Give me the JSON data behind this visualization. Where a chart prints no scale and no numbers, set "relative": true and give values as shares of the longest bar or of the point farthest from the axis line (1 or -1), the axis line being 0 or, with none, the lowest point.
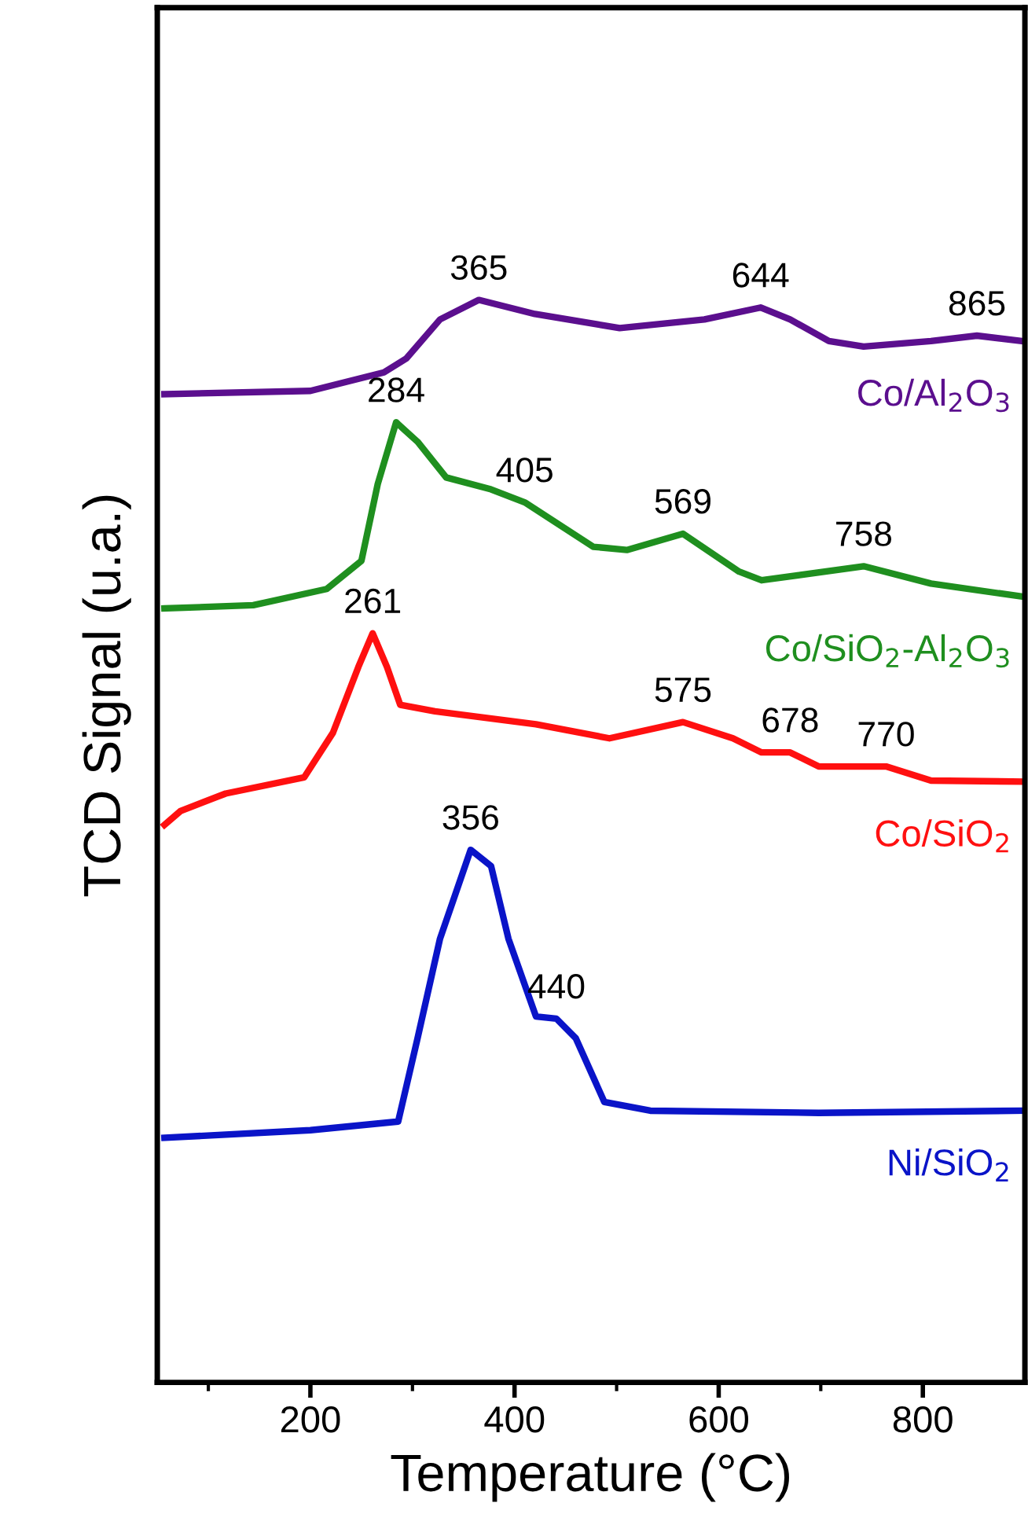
{
  "chart_data": {
    "type": "line",
    "xlabel": "Temperature (°C)",
    "ylabel": "TCD Signal (u.a.)",
    "relative": true,
    "tick_labels": "x",
    "legend": false,
    "grid": false,
    "marker": "none",
    "line_style": "solid",
    "xlim": [
      50,
      900
    ],
    "xticks": [
      {
        "value": 100,
        "label": null
      },
      200,
      {
        "value": 300,
        "label": null
      },
      400,
      {
        "value": 500,
        "label": null
      },
      600,
      {
        "value": 700,
        "label": null
      },
      800
    ],
    "series": [
      {
        "name": "Co/Al$_{2}$O$_{3}$",
        "color": "#5b0f8e",
        "x": [
          57,
          200,
          272,
          294,
          327,
          365,
          420,
          503,
          586,
          641,
          670,
          708,
          742,
          808,
          853,
          897
        ],
        "values": [
          0.913,
          0.916,
          0.933,
          0.946,
          0.982,
          1.0,
          0.987,
          0.974,
          0.982,
          0.993,
          0.982,
          0.962,
          0.957,
          0.962,
          0.967,
          0.962
        ]
      },
      {
        "name": "Co/SiO$_{2}$-Al$_{2}$O$_{3}$",
        "color": "#1f8f1f",
        "x": [
          57,
          144,
          216,
          250,
          266,
          284,
          305,
          333,
          377,
          410,
          477,
          510,
          565,
          620,
          642,
          742,
          808,
          897
        ],
        "values": [
          0.715,
          0.718,
          0.733,
          0.759,
          0.83,
          0.887,
          0.869,
          0.836,
          0.825,
          0.813,
          0.772,
          0.769,
          0.784,
          0.749,
          0.741,
          0.754,
          0.738,
          0.726
        ]
      },
      {
        "name": "Co/SiO$_{2}$",
        "color": "#ff1010",
        "x": [
          57,
          73,
          117,
          194,
          222,
          247,
          261,
          275,
          288,
          322,
          421,
          493,
          565,
          614,
          642,
          670,
          698,
          764,
          808,
          897
        ],
        "values": [
          0.515,
          0.528,
          0.544,
          0.559,
          0.6,
          0.661,
          0.692,
          0.661,
          0.626,
          0.62,
          0.608,
          0.595,
          0.61,
          0.595,
          0.582,
          0.582,
          0.569,
          0.569,
          0.556,
          0.555
        ]
      },
      {
        "name": "Ni/SiO$_{2}$",
        "color": "#0a14c8",
        "x": [
          57,
          200,
          286,
          305,
          327,
          357,
          377,
          394,
          421,
          441,
          460,
          488,
          533,
          698,
          897
        ],
        "values": [
          0.226,
          0.233,
          0.241,
          0.318,
          0.41,
          0.492,
          0.477,
          0.41,
          0.338,
          0.336,
          0.318,
          0.259,
          0.251,
          0.249,
          0.251
        ]
      }
    ],
    "annotations": [
      {
        "text": "365",
        "x": 365,
        "y": 1.0
      },
      {
        "text": "644",
        "x": 641,
        "y": 0.993
      },
      {
        "text": "865",
        "x": 853,
        "y": 0.967
      },
      {
        "text": "284",
        "x": 284,
        "y": 0.887
      },
      {
        "text": "405",
        "x": 410,
        "y": 0.813
      },
      {
        "text": "569",
        "x": 565,
        "y": 0.784
      },
      {
        "text": "758",
        "x": 742,
        "y": 0.754
      },
      {
        "text": "261",
        "x": 261,
        "y": 0.692
      },
      {
        "text": "575",
        "x": 565,
        "y": 0.61
      },
      {
        "text": "678",
        "x": 670,
        "y": 0.582
      },
      {
        "text": "770",
        "x": 764,
        "y": 0.569
      },
      {
        "text": "356",
        "x": 357,
        "y": 0.492
      },
      {
        "text": "440",
        "x": 441,
        "y": 0.336
      }
    ]
  }
}
